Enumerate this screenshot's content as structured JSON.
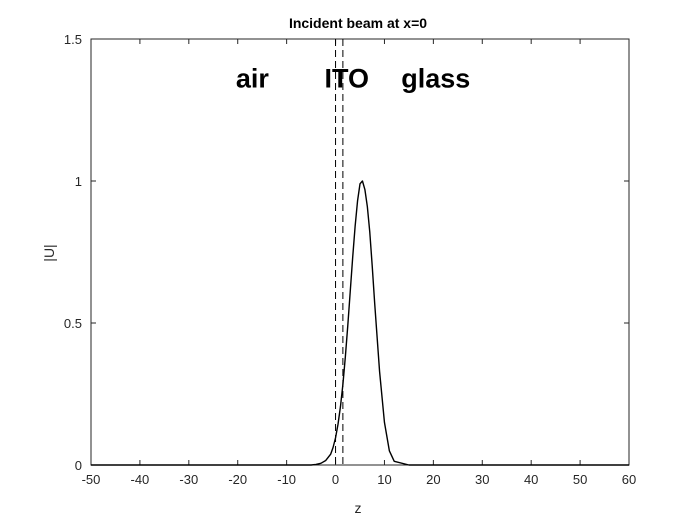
{
  "chart_data": {
    "type": "line",
    "title": "Incident beam at x=0",
    "xlabel": "z",
    "ylabel": "|U|",
    "xlim": [
      -50,
      60
    ],
    "ylim": [
      0,
      1.5
    ],
    "xticks": [
      "-50",
      "-40",
      "-30",
      "-20",
      "-10",
      "0",
      "10",
      "20",
      "30",
      "40",
      "50",
      "60"
    ],
    "yticks": [
      "0",
      "0.5",
      "1",
      "1.5"
    ],
    "grid": false,
    "series": [
      {
        "color": "#000000",
        "x": [
          -50,
          -20,
          -10,
          -5,
          -4,
          -3,
          -2,
          -1,
          -0.5,
          0,
          0.5,
          1,
          1.5,
          2,
          2.5,
          3,
          3.5,
          4,
          4.5,
          5,
          5.5,
          6,
          6.5,
          7,
          7.5,
          8,
          9,
          10,
          11,
          12,
          15,
          20,
          60
        ],
        "y": [
          0,
          0,
          0,
          0.0,
          0.002,
          0.006,
          0.016,
          0.038,
          0.062,
          0.096,
          0.143,
          0.205,
          0.283,
          0.38,
          0.49,
          0.61,
          0.73,
          0.84,
          0.93,
          0.99,
          1.0,
          0.97,
          0.91,
          0.82,
          0.7,
          0.57,
          0.33,
          0.15,
          0.05,
          0.013,
          0.0,
          0,
          0
        ]
      }
    ],
    "vlines": [
      {
        "x": 0,
        "style": "dashed"
      },
      {
        "x": 1.5,
        "style": "dashed"
      }
    ],
    "annotations": [
      {
        "text": "air",
        "x": -17,
        "y": 1.33
      },
      {
        "text": "ITO",
        "x": 2.3,
        "y": 1.33
      },
      {
        "text": "glass",
        "x": 20.5,
        "y": 1.33
      }
    ]
  }
}
